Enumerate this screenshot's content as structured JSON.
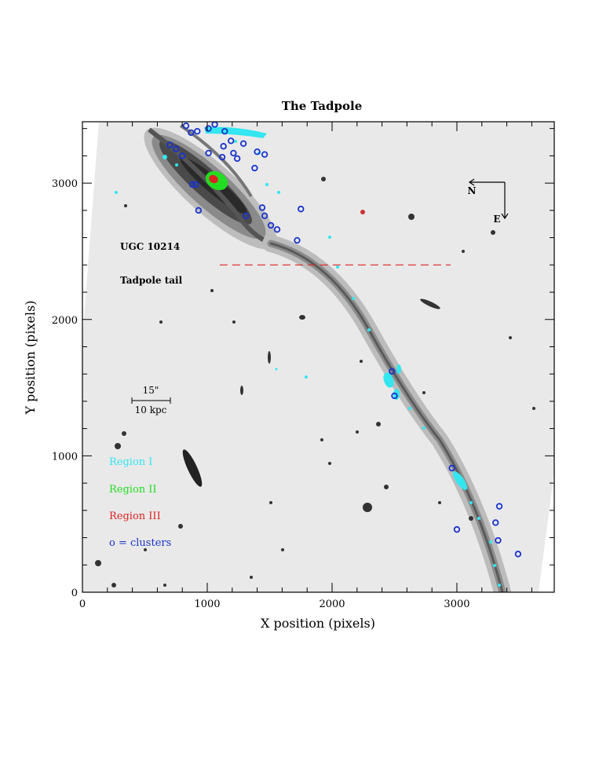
{
  "chart_data": {
    "type": "scatter",
    "title": "The Tadpole",
    "xlabel": "X position (pixels)",
    "ylabel": "Y position (pixels)",
    "xlim": [
      0,
      3780
    ],
    "ylim": [
      0,
      3450
    ],
    "x_ticks": [
      0,
      1000,
      2000,
      3000
    ],
    "y_ticks": [
      0,
      1000,
      2000,
      3000
    ],
    "grid": false,
    "annotations": {
      "galaxy": "UGC 10214",
      "tail": "Tadpole tail",
      "scale_arcsec": "15\"",
      "scale_kpc": "10 kpc",
      "north": "N",
      "east": "E"
    },
    "legend": [
      {
        "label": "Region I",
        "color": "#33e6f0"
      },
      {
        "label": "Region II",
        "color": "#22dd22"
      },
      {
        "label": "Region III",
        "color": "#dd2222"
      },
      {
        "label": "o = clusters",
        "color": "#1a33cc"
      }
    ],
    "divider_line": {
      "y": 2400,
      "x_start": 1100,
      "x_end": 2950,
      "color": "#dd2222"
    },
    "clusters": {
      "name": "clusters",
      "points": [
        [
          830,
          3420
        ],
        [
          870,
          3370
        ],
        [
          920,
          3380
        ],
        [
          1010,
          3400
        ],
        [
          1060,
          3430
        ],
        [
          1140,
          3380
        ],
        [
          1190,
          3310
        ],
        [
          1290,
          3290
        ],
        [
          700,
          3280
        ],
        [
          750,
          3250
        ],
        [
          800,
          3200
        ],
        [
          1010,
          3220
        ],
        [
          1130,
          3270
        ],
        [
          1210,
          3220
        ],
        [
          1240,
          3180
        ],
        [
          1120,
          3190
        ],
        [
          1400,
          3230
        ],
        [
          1460,
          3210
        ],
        [
          1380,
          3110
        ],
        [
          880,
          2990
        ],
        [
          910,
          2990
        ],
        [
          930,
          2800
        ],
        [
          1310,
          2760
        ],
        [
          1440,
          2820
        ],
        [
          1460,
          2760
        ],
        [
          1510,
          2690
        ],
        [
          1560,
          2660
        ],
        [
          1750,
          2810
        ],
        [
          1720,
          2580
        ],
        [
          2480,
          1620
        ],
        [
          2500,
          1440
        ],
        [
          2960,
          910
        ],
        [
          3340,
          630
        ],
        [
          3310,
          510
        ],
        [
          3000,
          460
        ],
        [
          3330,
          380
        ],
        [
          3490,
          280
        ]
      ]
    }
  }
}
